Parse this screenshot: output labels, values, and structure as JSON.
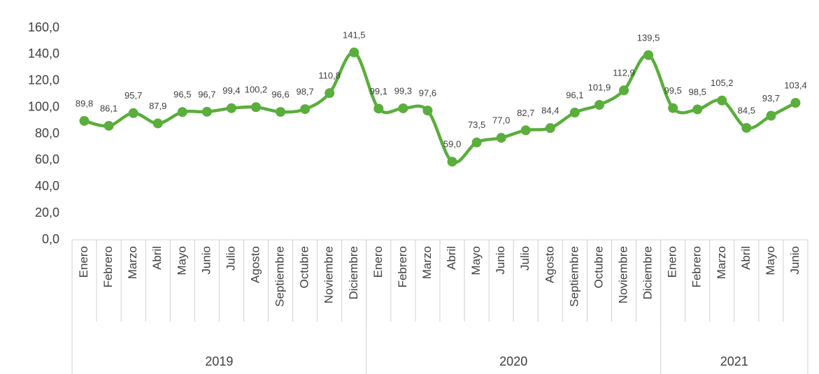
{
  "chart_data": {
    "type": "line",
    "categories": [
      "Enero",
      "Febrero",
      "Marzo",
      "Abril",
      "Mayo",
      "Junio",
      "Julio",
      "Agosto",
      "Septiembre",
      "Octubre",
      "Noviembre",
      "Diciembre",
      "Enero",
      "Febrero",
      "Marzo",
      "Abril",
      "Mayo",
      "Junio",
      "Julio",
      "Agosto",
      "Septiembre",
      "Octubre",
      "Noviembre",
      "Diciembre",
      "Enero",
      "Febrero",
      "Marzo",
      "Abril",
      "Mayo",
      "Junio"
    ],
    "groups": [
      {
        "label": "2019",
        "count": 12
      },
      {
        "label": "2020",
        "count": 12
      },
      {
        "label": "2021",
        "count": 6
      }
    ],
    "series": [
      {
        "color": "#5aae3c",
        "values": [
          89.8,
          86.1,
          95.7,
          87.9,
          96.5,
          96.7,
          99.4,
          100.2,
          96.6,
          98.7,
          110.8,
          141.5,
          99.1,
          99.3,
          97.6,
          59.0,
          73.5,
          77.0,
          82.7,
          84.4,
          96.1,
          101.9,
          112.9,
          139.5,
          99.5,
          98.5,
          105.2,
          84.5,
          93.7,
          103.4
        ],
        "value_labels": [
          "89,8",
          "86,1",
          "95,7",
          "87,9",
          "96,5",
          "96,7",
          "99,4",
          "100,2",
          "96,6",
          "98,7",
          "110,8",
          "141,5",
          "99,1",
          "99,3",
          "97,6",
          "59,0",
          "73,5",
          "77,0",
          "82,7",
          "84,4",
          "96,1",
          "101,9",
          "112,9",
          "139,5",
          "99,5",
          "98,5",
          "105,2",
          "84,5",
          "93,7",
          "103,4"
        ]
      }
    ],
    "ylim": [
      0,
      160
    ],
    "yticks": [
      {
        "value": 0,
        "label": "0,0"
      },
      {
        "value": 20,
        "label": "20,0"
      },
      {
        "value": 40,
        "label": "40,0"
      },
      {
        "value": 60,
        "label": "60,0"
      },
      {
        "value": 80,
        "label": "80,0"
      },
      {
        "value": 100,
        "label": "100,0"
      },
      {
        "value": 120,
        "label": "120,0"
      },
      {
        "value": 140,
        "label": "140,0"
      },
      {
        "value": 160,
        "label": "160,0"
      }
    ]
  }
}
